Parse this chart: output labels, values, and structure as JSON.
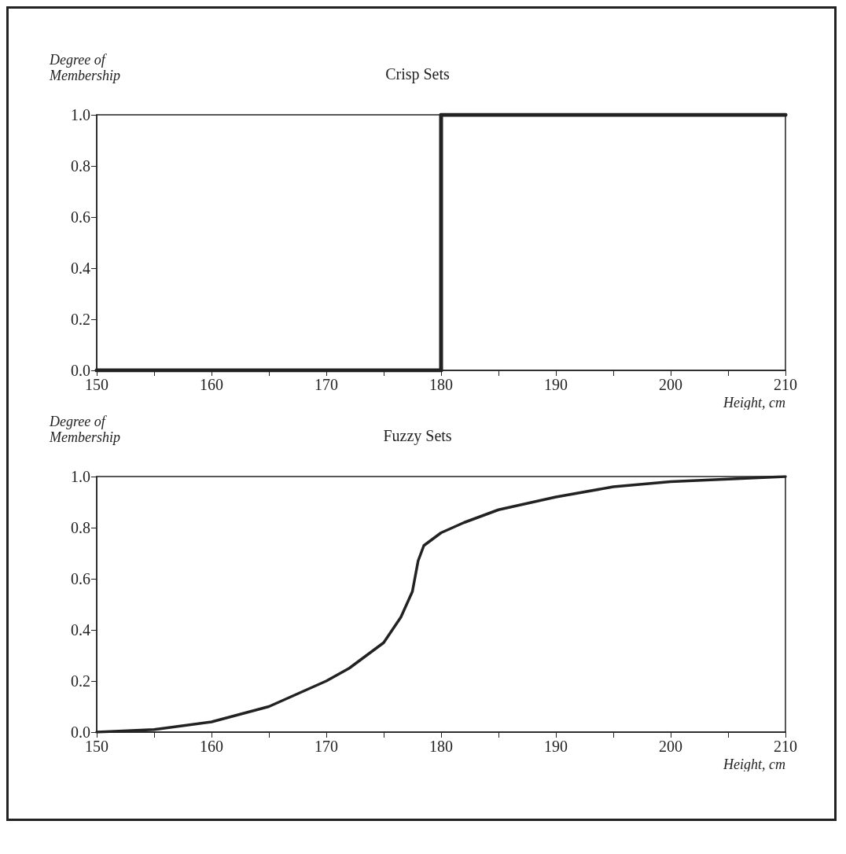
{
  "chart_data": [
    {
      "type": "step",
      "title": "Crisp Sets",
      "ylabel": "Degree of\nMembership",
      "xlabel": "Height, cm",
      "x": [
        150,
        180,
        210
      ],
      "series": [
        {
          "color": "#222222",
          "values": [
            0,
            1,
            1
          ]
        }
      ],
      "xlim": [
        150,
        210
      ],
      "xticks": [
        150,
        160,
        170,
        180,
        190,
        200,
        210
      ],
      "ylim": [
        0,
        1
      ],
      "yticks": [
        {
          "value": 0,
          "label": "0.0"
        },
        {
          "value": 0.2,
          "label": "0.2"
        },
        {
          "value": 0.4,
          "label": "0.4"
        },
        {
          "value": 0.6,
          "label": "0.6"
        },
        {
          "value": 0.8,
          "label": "0.8"
        },
        {
          "value": 1,
          "label": "1.0"
        }
      ],
      "grid": false,
      "marker": "none",
      "line_style": "solid"
    },
    {
      "type": "line",
      "title": "Fuzzy Sets",
      "ylabel": "Degree of\nMembership",
      "xlabel": "Height, cm",
      "x": [
        150,
        155,
        160,
        165,
        170,
        172,
        175,
        176.5,
        177.5,
        178,
        178.5,
        180,
        182,
        185,
        190,
        195,
        200,
        205,
        210
      ],
      "series": [
        {
          "color": "#222222",
          "values": [
            0,
            0.01,
            0.04,
            0.1,
            0.2,
            0.25,
            0.35,
            0.45,
            0.55,
            0.67,
            0.73,
            0.78,
            0.82,
            0.87,
            0.92,
            0.96,
            0.98,
            0.99,
            1
          ]
        }
      ],
      "xlim": [
        150,
        210
      ],
      "xticks": [
        150,
        160,
        170,
        180,
        190,
        200,
        210
      ],
      "ylim": [
        0,
        1
      ],
      "yticks": [
        {
          "value": 0,
          "label": "0.0"
        },
        {
          "value": 0.2,
          "label": "0.2"
        },
        {
          "value": 0.4,
          "label": "0.4"
        },
        {
          "value": 0.6,
          "label": "0.6"
        },
        {
          "value": 0.8,
          "label": "0.8"
        },
        {
          "value": 1,
          "label": "1.0"
        }
      ],
      "grid": false,
      "marker": "none",
      "line_style": "solid"
    }
  ]
}
